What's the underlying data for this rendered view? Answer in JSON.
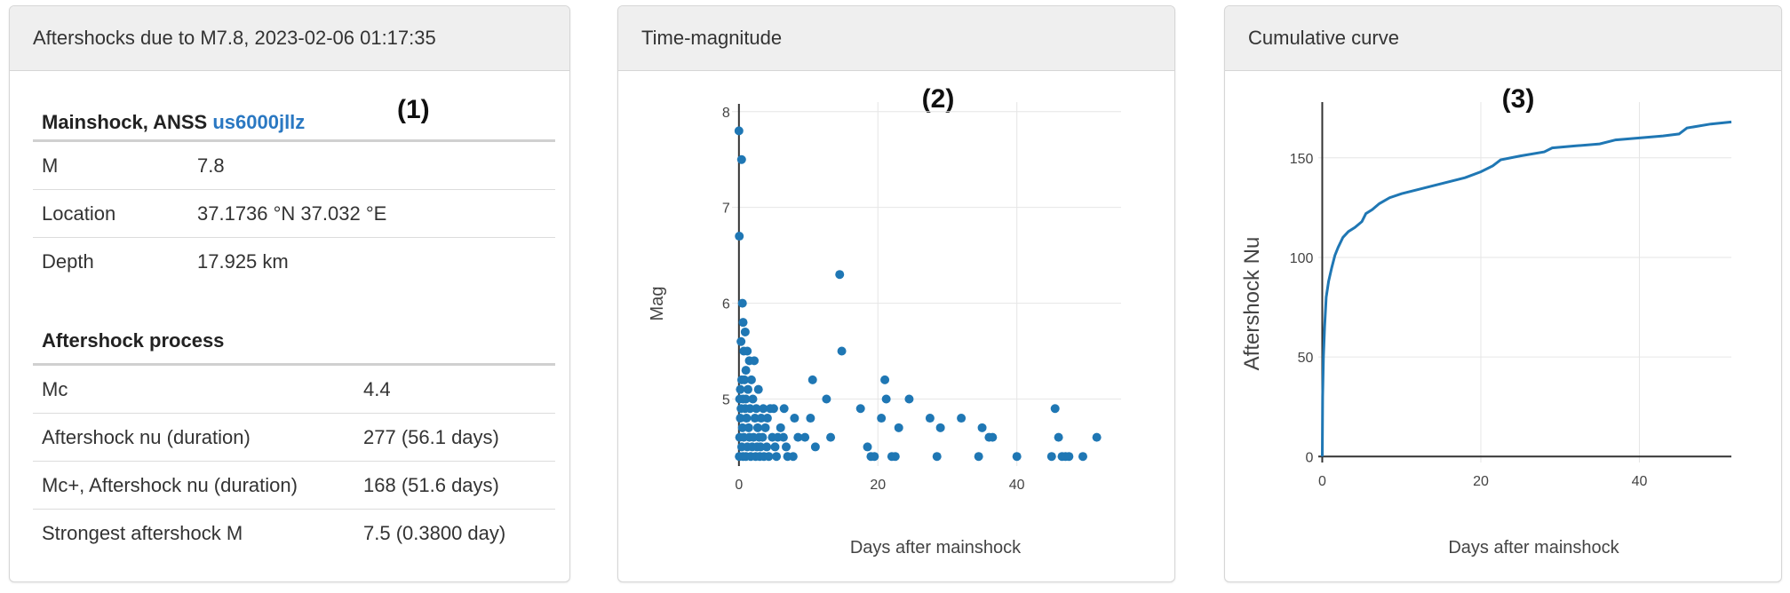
{
  "panels": {
    "p1": {
      "header": "Aftershocks due to M7.8, 2023-02-06 01:17:35",
      "label": "(1)",
      "mainshock_title": "Mainshock, ANSS ",
      "mainshock_id": "us6000jllz",
      "mainshock_rows": [
        {
          "k": "M",
          "v": "7.8"
        },
        {
          "k": "Location",
          "v": "37.1736 °N 37.032 °E"
        },
        {
          "k": "Depth",
          "v": "17.925 km"
        }
      ],
      "process_title": "Aftershock process",
      "process_rows": [
        {
          "k": "Mc",
          "v": "4.4"
        },
        {
          "k": "Aftershock nu (duration)",
          "v": "277 (56.1 days)"
        },
        {
          "k": "Mc+, Aftershock nu (duration)",
          "v": "168 (51.6 days)"
        },
        {
          "k": "Strongest aftershock M",
          "v": "7.5 (0.3800 day)"
        }
      ]
    },
    "p2": {
      "header": "Time-magnitude",
      "label": "(2)"
    },
    "p3": {
      "header": "Cumulative curve",
      "label": "(3)"
    }
  },
  "colors": {
    "series": "#1f77b4",
    "grid": "#e6e6e6",
    "axis": "#333333"
  },
  "chart_data": [
    {
      "type": "scatter",
      "xlabel": "Days after mainshock",
      "ylabel": "Mag",
      "xlim": [
        -1,
        55
      ],
      "ylim": [
        4.3,
        8.1
      ],
      "xticks": [
        0,
        20,
        40
      ],
      "yticks": [
        5,
        6,
        7,
        8
      ],
      "grid": true,
      "series": [
        {
          "points": [
            [
              0.0,
              7.8
            ],
            [
              0.38,
              7.5
            ],
            [
              0.05,
              6.7
            ],
            [
              0.5,
              6.0
            ],
            [
              0.6,
              5.8
            ],
            [
              0.9,
              5.7
            ],
            [
              0.3,
              5.6
            ],
            [
              0.7,
              5.5
            ],
            [
              1.2,
              5.5
            ],
            [
              1.5,
              5.4
            ],
            [
              2.2,
              5.4
            ],
            [
              1.0,
              5.3
            ],
            [
              0.4,
              5.2
            ],
            [
              0.8,
              5.2
            ],
            [
              1.8,
              5.2
            ],
            [
              0.2,
              5.1
            ],
            [
              1.3,
              5.1
            ],
            [
              2.8,
              5.1
            ],
            [
              0.1,
              5.0
            ],
            [
              0.6,
              5.0
            ],
            [
              1.0,
              5.0
            ],
            [
              2.0,
              5.0
            ],
            [
              0.3,
              4.9
            ],
            [
              0.9,
              4.9
            ],
            [
              1.6,
              4.9
            ],
            [
              2.5,
              4.9
            ],
            [
              3.5,
              4.9
            ],
            [
              4.5,
              4.9
            ],
            [
              5.0,
              4.9
            ],
            [
              6.5,
              4.9
            ],
            [
              0.2,
              4.8
            ],
            [
              1.1,
              4.8
            ],
            [
              2.3,
              4.8
            ],
            [
              3.2,
              4.8
            ],
            [
              4.1,
              4.8
            ],
            [
              0.5,
              4.7
            ],
            [
              1.4,
              4.7
            ],
            [
              2.7,
              4.7
            ],
            [
              3.8,
              4.7
            ],
            [
              6.0,
              4.7
            ],
            [
              0.1,
              4.6
            ],
            [
              0.7,
              4.6
            ],
            [
              1.5,
              4.6
            ],
            [
              2.1,
              4.6
            ],
            [
              2.9,
              4.6
            ],
            [
              3.4,
              4.6
            ],
            [
              4.8,
              4.6
            ],
            [
              5.6,
              4.6
            ],
            [
              6.4,
              4.6
            ],
            [
              8.5,
              4.6
            ],
            [
              0.4,
              4.5
            ],
            [
              1.2,
              4.5
            ],
            [
              1.9,
              4.5
            ],
            [
              2.6,
              4.5
            ],
            [
              3.1,
              4.5
            ],
            [
              4.0,
              4.5
            ],
            [
              5.2,
              4.5
            ],
            [
              6.8,
              4.5
            ],
            [
              0.05,
              4.4
            ],
            [
              0.6,
              4.4
            ],
            [
              1.0,
              4.4
            ],
            [
              1.7,
              4.4
            ],
            [
              2.4,
              4.4
            ],
            [
              3.0,
              4.4
            ],
            [
              3.6,
              4.4
            ],
            [
              4.3,
              4.4
            ],
            [
              5.4,
              4.4
            ],
            [
              7.0,
              4.4
            ],
            [
              7.8,
              4.4
            ],
            [
              8.0,
              4.8
            ],
            [
              9.5,
              4.6
            ],
            [
              10.3,
              4.8
            ],
            [
              10.6,
              5.2
            ],
            [
              11.0,
              4.5
            ],
            [
              12.6,
              5.0
            ],
            [
              13.2,
              4.6
            ],
            [
              14.5,
              6.3
            ],
            [
              14.8,
              5.5
            ],
            [
              17.5,
              4.9
            ],
            [
              18.5,
              4.5
            ],
            [
              19.0,
              4.4
            ],
            [
              19.5,
              4.4
            ],
            [
              20.5,
              4.8
            ],
            [
              21.0,
              5.2
            ],
            [
              21.2,
              5.0
            ],
            [
              22.0,
              4.4
            ],
            [
              22.5,
              4.4
            ],
            [
              23.0,
              4.7
            ],
            [
              24.5,
              5.0
            ],
            [
              27.5,
              4.8
            ],
            [
              28.5,
              4.4
            ],
            [
              29.0,
              4.7
            ],
            [
              32.0,
              4.8
            ],
            [
              34.5,
              4.4
            ],
            [
              35.0,
              4.7
            ],
            [
              36.0,
              4.6
            ],
            [
              36.5,
              4.6
            ],
            [
              40.0,
              4.4
            ],
            [
              45.0,
              4.4
            ],
            [
              45.5,
              4.9
            ],
            [
              46.0,
              4.6
            ],
            [
              46.5,
              4.4
            ],
            [
              47.0,
              4.4
            ],
            [
              47.5,
              4.4
            ],
            [
              49.5,
              4.4
            ],
            [
              51.5,
              4.6
            ]
          ]
        }
      ]
    },
    {
      "type": "line",
      "xlabel": "Days after mainshock",
      "ylabel": "Aftershock Nu",
      "xlim": [
        -0.5,
        51.6
      ],
      "ylim": [
        -3,
        178
      ],
      "xticks": [
        0,
        20,
        40
      ],
      "yticks": [
        0,
        50,
        100,
        150
      ],
      "grid": true,
      "series": [
        {
          "x": [
            0,
            0.05,
            0.15,
            0.3,
            0.5,
            0.8,
            1.2,
            1.6,
            2.0,
            2.6,
            3.3,
            4.1,
            5.0,
            5.5,
            6.3,
            7.2,
            8.5,
            10.0,
            12.0,
            14.0,
            16.0,
            18.0,
            20.0,
            21.5,
            22.5,
            25.0,
            28.0,
            29.0,
            32.0,
            35.0,
            37.0,
            40.0,
            43.0,
            45.0,
            46.0,
            49.0,
            51.6
          ],
          "y": [
            0,
            30,
            50,
            65,
            80,
            88,
            95,
            101,
            105,
            110,
            113,
            115,
            118,
            122,
            124,
            127,
            130,
            132,
            134,
            136,
            138,
            140,
            143,
            146,
            149,
            151,
            153,
            155,
            156,
            157,
            159,
            160,
            161,
            162,
            165,
            167,
            168
          ]
        }
      ]
    }
  ]
}
